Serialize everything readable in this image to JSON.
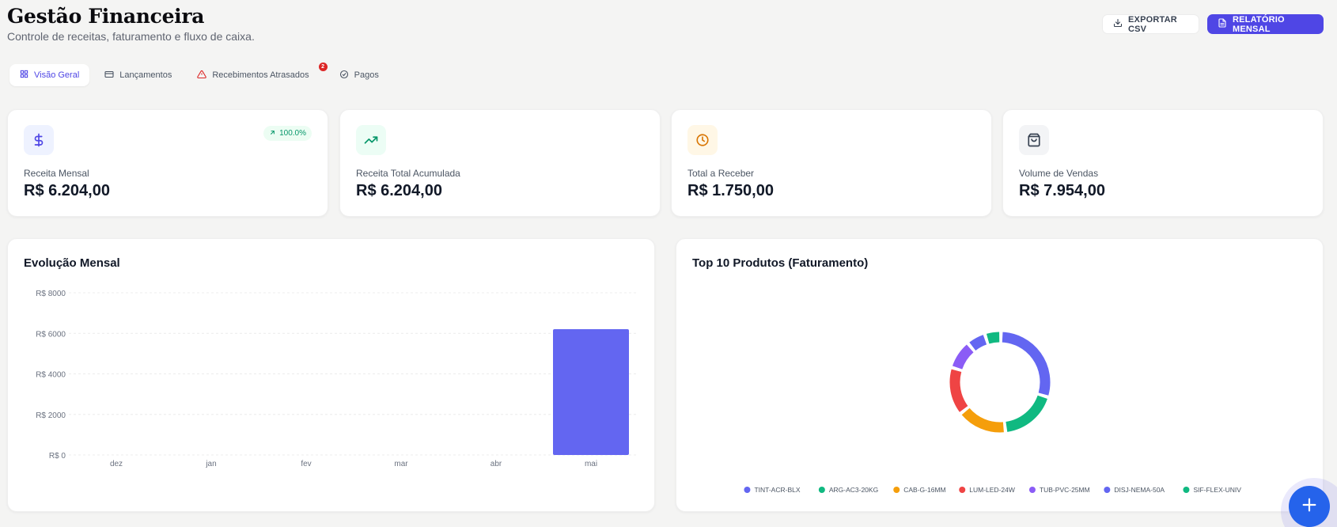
{
  "header": {
    "title": "Gestão Financeira",
    "subtitle": "Controle de receitas, faturamento e fluxo de caixa."
  },
  "actions": {
    "export_label": "EXPORTAR CSV",
    "report_label": "RELATÓRIO MENSAL"
  },
  "tabs": [
    {
      "label": "Visão Geral",
      "icon": "grid-icon",
      "active": true
    },
    {
      "label": "Lançamentos",
      "icon": "credit-card-icon"
    },
    {
      "label": "Recebimentos Atrasados",
      "icon": "alert-triangle-icon",
      "badge": "2"
    },
    {
      "label": "Pagos",
      "icon": "check-circle-icon"
    }
  ],
  "stats": [
    {
      "label": "Receita Mensal",
      "value": "R$ 6.204,00",
      "icon": "dollar-icon",
      "trend": "100.0%"
    },
    {
      "label": "Receita Total Acumulada",
      "value": "R$ 6.204,00",
      "icon": "trending-up-icon"
    },
    {
      "label": "Total a Receber",
      "value": "R$ 1.750,00",
      "icon": "clock-icon"
    },
    {
      "label": "Volume de Vendas",
      "value": "R$ 7.954,00",
      "icon": "shopping-bag-icon"
    }
  ],
  "colors": {
    "accent": "#4f46e5",
    "primary_blue": "#2563eb",
    "bar": "#6366f1",
    "success": "#10b981",
    "danger": "#dc2626",
    "warning": "#f59e0b"
  },
  "chart_data": [
    {
      "type": "bar",
      "title": "Evolução Mensal",
      "categories": [
        "dez",
        "jan",
        "fev",
        "mar",
        "abr",
        "mai"
      ],
      "values": [
        0,
        0,
        0,
        0,
        0,
        6204
      ],
      "ylim": [
        0,
        8000
      ],
      "yticks": [
        0,
        2000,
        4000,
        6000,
        8000
      ],
      "ytick_labels": [
        "R$ 0",
        "R$ 2000",
        "R$ 4000",
        "R$ 6000",
        "R$ 8000"
      ],
      "grid": true
    },
    {
      "type": "pie",
      "title": "Top 10 Produtos (Faturamento)",
      "labels": [
        "TINT-ACR-BLX",
        "ARG-AC3-20KG",
        "CAB-G-16MM",
        "LUM-LED-24W",
        "TUB-PVC-25MM",
        "DISJ-NEMA-50A",
        "SIF-FLEX-UNIV"
      ],
      "values": [
        29.5,
        18.4,
        16.1,
        15.4,
        9.3,
        6.1,
        5.2
      ],
      "colors": [
        "#6366f1",
        "#10b981",
        "#f59e0b",
        "#ef4444",
        "#8b5cf6",
        "#6366f1",
        "#10b981"
      ],
      "legend": "bottom"
    }
  ]
}
